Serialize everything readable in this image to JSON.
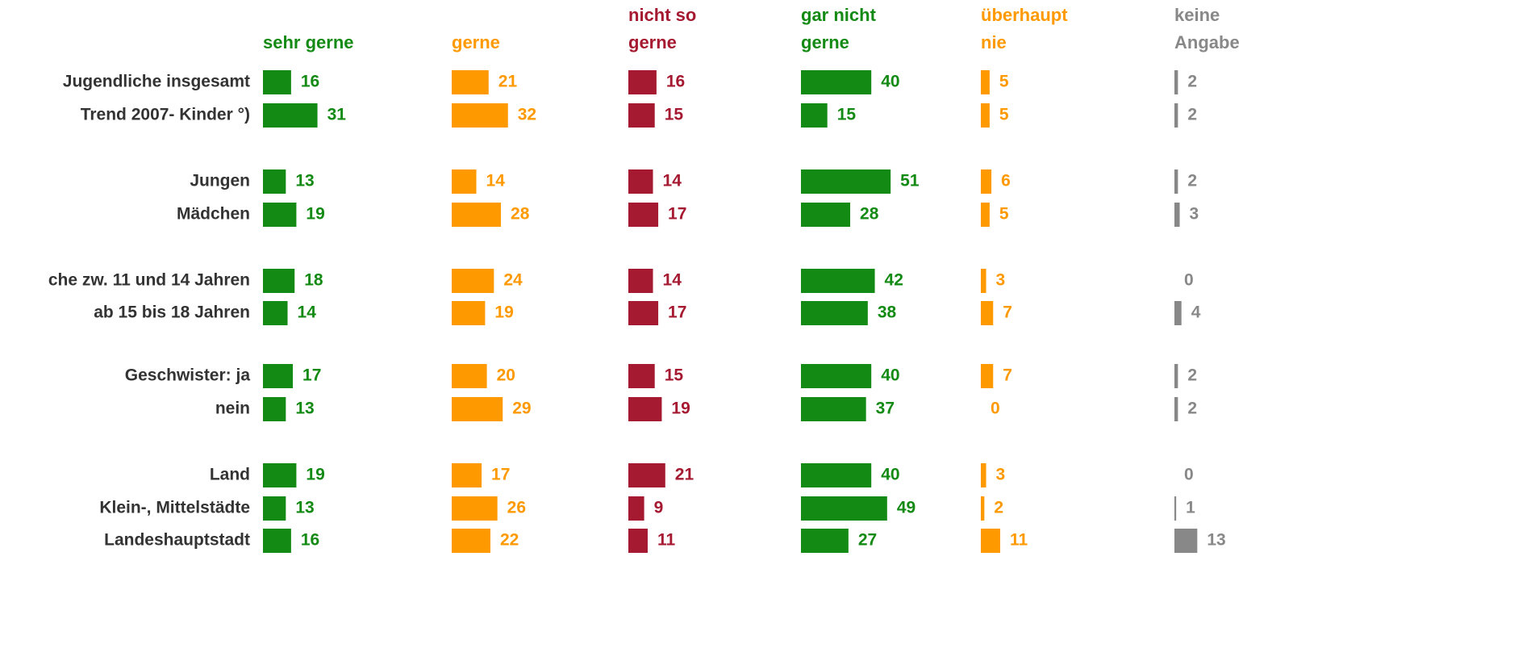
{
  "chart_data": {
    "type": "bar",
    "orientation": "horizontal",
    "categories": [
      "Jugendliche insgesamt",
      "Trend 2007- Kinder °)",
      "Jungen",
      "Mädchen",
      "che zw. 11 und 14 Jahren",
      "ab 15 bis 18 Jahren",
      "Geschwister: ja",
      "nein",
      "Land",
      "Klein-, Mittelstädte",
      "Landeshauptstadt"
    ],
    "series": [
      {
        "name": "sehr gerne",
        "color": "#138a13",
        "values": [
          16,
          31,
          13,
          19,
          18,
          14,
          17,
          13,
          19,
          13,
          16
        ]
      },
      {
        "name": "gerne",
        "color": "#ff9900",
        "values": [
          21,
          32,
          14,
          28,
          24,
          19,
          20,
          29,
          17,
          26,
          22
        ]
      },
      {
        "name": "nicht so gerne",
        "color": "#a51931",
        "values": [
          16,
          15,
          14,
          17,
          14,
          17,
          15,
          19,
          21,
          9,
          11
        ]
      },
      {
        "name": "gar nicht gerne",
        "color": "#138a13",
        "values": [
          40,
          15,
          51,
          28,
          42,
          38,
          40,
          37,
          40,
          49,
          27
        ]
      },
      {
        "name": "überhaupt nie",
        "color": "#ff9900",
        "values": [
          5,
          5,
          6,
          5,
          3,
          7,
          7,
          0,
          3,
          2,
          11
        ]
      },
      {
        "name": "keine Angabe",
        "color": "#888888",
        "values": [
          2,
          2,
          2,
          3,
          0,
          4,
          2,
          2,
          0,
          1,
          13
        ]
      }
    ]
  }
}
